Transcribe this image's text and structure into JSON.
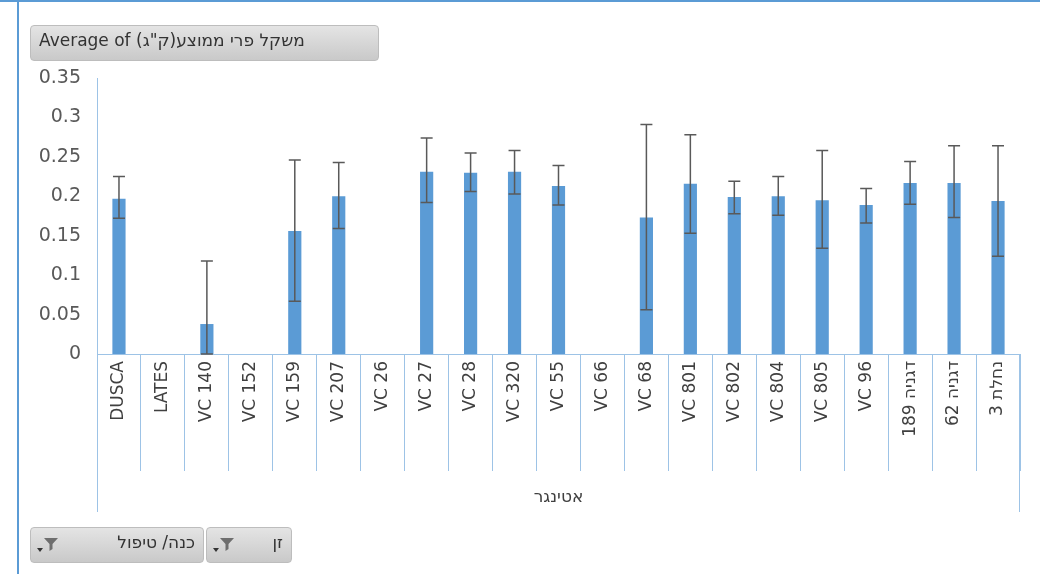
{
  "chart_data": {
    "type": "bar",
    "title": "Average of  משקל פרי ממוצע(ק\"ג)",
    "xlabel": "אטינגר",
    "categories": [
      "DUSCA",
      "LATES",
      "VC 140",
      "VC 152",
      "VC 159",
      "VC 207",
      "VC 26",
      "VC 27",
      "VC 28",
      "VC 320",
      "VC 55",
      "VC 66",
      "VC 68",
      "VC 801",
      "VC 802",
      "VC 804",
      "VC 805",
      "VC 96",
      "דגניה 189",
      "דגניה 62",
      "נחלת 3"
    ],
    "values": [
      0.197,
      null,
      0.038,
      null,
      0.156,
      0.2,
      null,
      0.231,
      0.23,
      0.231,
      0.213,
      null,
      0.173,
      0.216,
      0.199,
      0.2,
      0.195,
      0.189,
      0.217,
      0.217,
      0.194
    ],
    "errors": [
      [
        0.172,
        0.225
      ],
      null,
      [
        0,
        0.118
      ],
      null,
      [
        0.067,
        0.246
      ],
      [
        0.159,
        0.243
      ],
      null,
      [
        0.192,
        0.274
      ],
      [
        0.206,
        0.255
      ],
      [
        0.203,
        0.258
      ],
      [
        0.189,
        0.239
      ],
      null,
      [
        0.056,
        0.291
      ],
      [
        0.153,
        0.278
      ],
      [
        0.178,
        0.219
      ],
      [
        0.176,
        0.225
      ],
      [
        0.134,
        0.258
      ],
      [
        0.166,
        0.21
      ],
      [
        0.19,
        0.244
      ],
      [
        0.173,
        0.264
      ],
      [
        0.124,
        0.264
      ]
    ],
    "color": "#5b9bd5",
    "ylim": [
      0,
      0.35
    ],
    "yticks": [
      0,
      0.05,
      0.1,
      0.15,
      0.2,
      0.25,
      0.3,
      0.35
    ],
    "grid": false,
    "legend": false,
    "annotations": [
      "כנה/ טיפול",
      "זן"
    ]
  }
}
